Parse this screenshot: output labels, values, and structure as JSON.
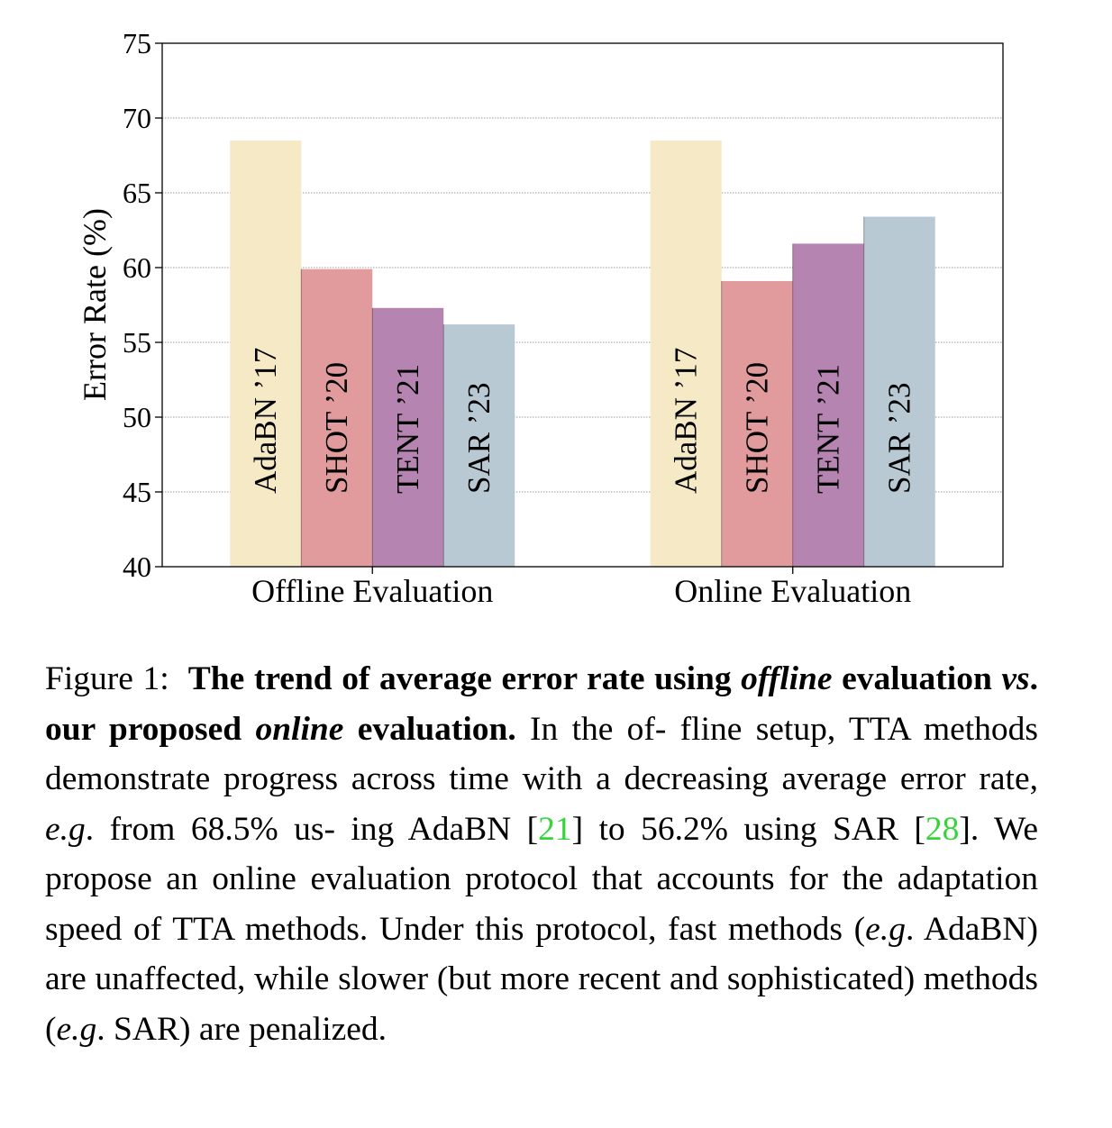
{
  "chart_data": {
    "type": "bar",
    "categories": [
      "Offline Evaluation",
      "Online Evaluation"
    ],
    "series": [
      {
        "name": "AdaBN '17",
        "values": [
          68.5,
          68.5
        ],
        "color": "#f5e9c6"
      },
      {
        "name": "SHOT '20",
        "values": [
          59.9,
          59.1
        ],
        "color": "#e29b9d"
      },
      {
        "name": "TENT '21",
        "values": [
          57.3,
          61.6
        ],
        "color": "#b584b0"
      },
      {
        "name": "SAR '23",
        "values": [
          56.2,
          63.4
        ],
        "color": "#b8c9d3"
      }
    ],
    "bar_labels": [
      "AdaBN ’17",
      "SHOT ’20",
      "TENT ’21",
      "SAR ’23"
    ],
    "ylabel": "Error Rate (%)",
    "xlabel": "",
    "title": "",
    "ylim": [
      40,
      75
    ],
    "yticks": [
      40,
      45,
      50,
      55,
      60,
      65,
      70,
      75
    ],
    "grid": true,
    "legend": "none"
  },
  "caption": {
    "figure_label": "Figure 1:",
    "bold_1": "The trend of average error rate using",
    "bold_italic_1": "offline",
    "bold_2": "evaluation",
    "bold_italic_2": "vs",
    "bold_3": ". our proposed",
    "bold_italic_3": "online",
    "bold_4": "evaluation.",
    "text_1": "In the of- fline setup, TTA methods demonstrate progress across time with a decreasing average error rate,",
    "eg_1": "e.g",
    "text_2": ". from 68.5% us- ing AdaBN [",
    "ref_1": "21",
    "text_3": "] to 56.2% using SAR [",
    "ref_2": "28",
    "text_4": "]. We propose an online evaluation protocol that accounts for the adaptation speed of TTA methods. Under this protocol, fast methods (",
    "eg_2": "e.g",
    "text_5": ". AdaBN) are unaffected, while slower (but more recent and sophisticated) methods (",
    "eg_3": "e.g",
    "text_6": ". SAR) are penalized."
  }
}
